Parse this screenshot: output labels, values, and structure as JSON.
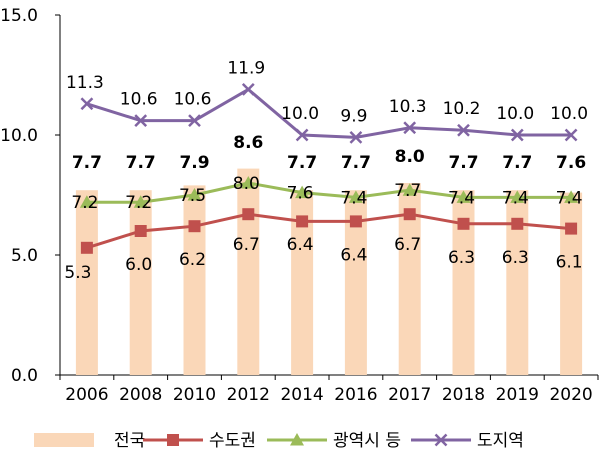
{
  "chart_data": {
    "type": "bar+line",
    "title": "",
    "xlabel": "",
    "ylabel": "",
    "ylim": [
      0,
      15
    ],
    "yticks": [
      0,
      5,
      10,
      15
    ],
    "ytick_labels": [
      "0.0",
      "5.0",
      "10.0",
      "15.0"
    ],
    "grid": false,
    "legend_position": "bottom",
    "categories": [
      "2006",
      "2008",
      "2010",
      "2012",
      "2014",
      "2016",
      "2017",
      "2018",
      "2019",
      "2020"
    ],
    "bar_series": {
      "name": "전국",
      "color": "#FAD7B8",
      "values": [
        7.7,
        7.7,
        7.9,
        8.6,
        7.7,
        7.7,
        8.0,
        7.7,
        7.7,
        7.6
      ],
      "labels": [
        "7.7",
        "7.7",
        "7.9",
        "8.6",
        "7.7",
        "7.7",
        "8.0",
        "7.7",
        "7.7",
        "7.6"
      ]
    },
    "line_series": [
      {
        "name": "수도권",
        "color": "#C0504D",
        "marker": "square",
        "values": [
          5.3,
          6.0,
          6.2,
          6.7,
          6.4,
          6.4,
          6.7,
          6.3,
          6.3,
          6.1
        ],
        "labels": [
          "5.3",
          "6.0",
          "6.2",
          "6.7",
          "6.4",
          "6.4",
          "6.7",
          "6.3",
          "6.3",
          "6.1"
        ]
      },
      {
        "name": "광역시 등",
        "color": "#9BBB59",
        "marker": "triangle",
        "values": [
          7.2,
          7.2,
          7.5,
          8.0,
          7.6,
          7.4,
          7.7,
          7.4,
          7.4,
          7.4
        ],
        "labels": [
          "7.2",
          "7.2",
          "7.5",
          "8.0",
          "7.6",
          "7.4",
          "7.7",
          "7.4",
          "7.4",
          "7.4"
        ]
      },
      {
        "name": "도지역",
        "color": "#8064A2",
        "marker": "x",
        "values": [
          11.3,
          10.6,
          10.6,
          11.9,
          10.0,
          9.9,
          10.3,
          10.2,
          10.0,
          10.0
        ],
        "labels": [
          "11.3",
          "10.6",
          "10.6",
          "11.9",
          "10.0",
          "9.9",
          "10.3",
          "10.2",
          "10.0",
          "10.0"
        ]
      }
    ]
  }
}
